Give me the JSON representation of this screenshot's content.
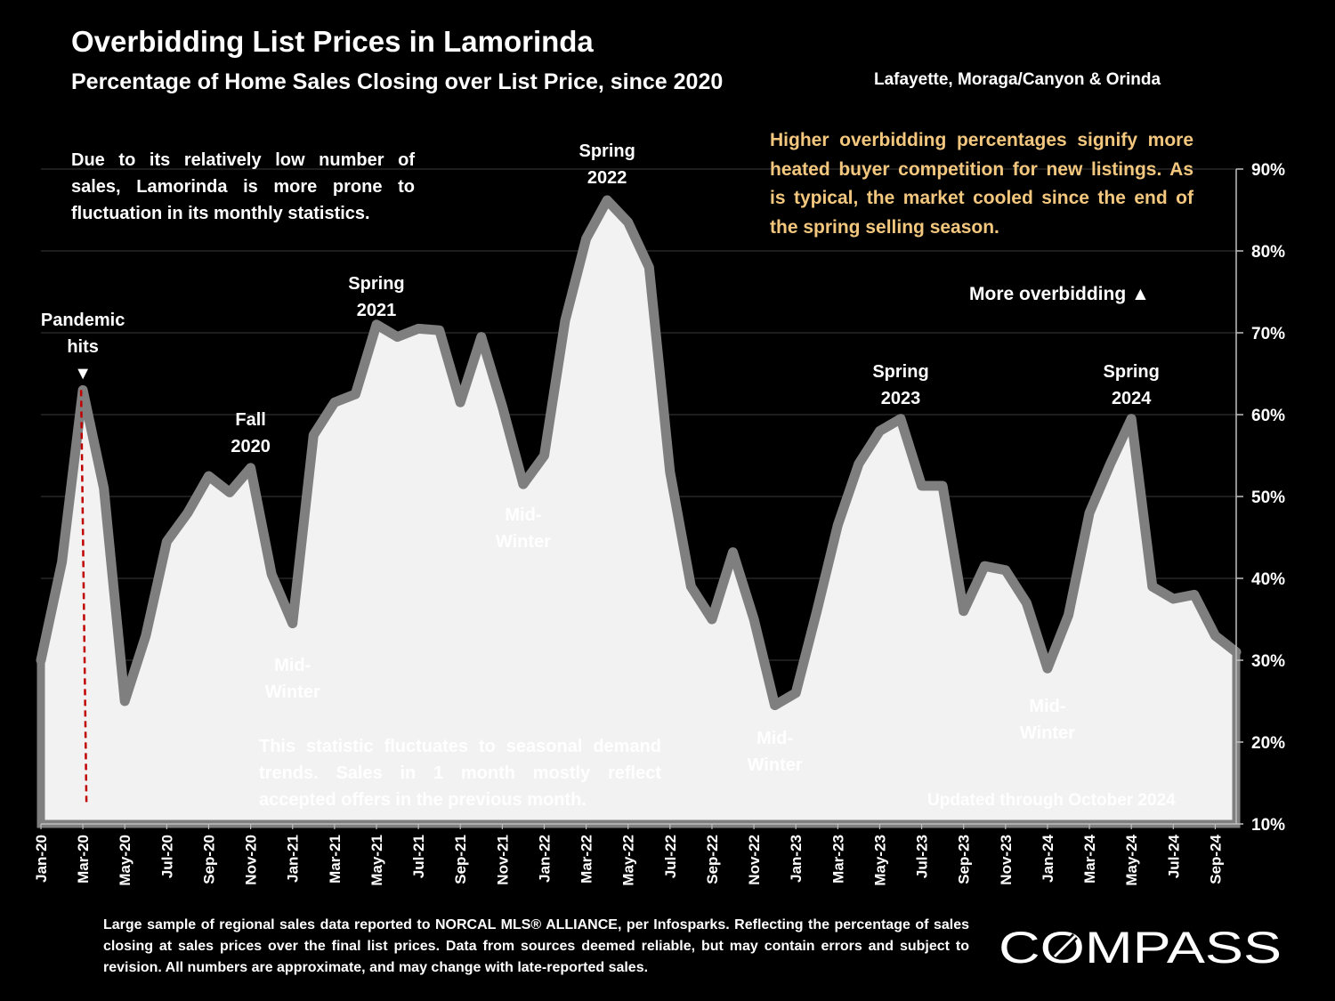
{
  "header": {
    "title": "Overbidding List Prices in Lamorinda",
    "subtitle": "Percentage of Home Sales Closing over List Price, since 2020",
    "region": "Lafayette, Moraga/Canyon & Orinda"
  },
  "notes": {
    "volatility": "Due to its relatively low number of sales, Lamorinda is more prone to fluctuation in its monthly statistics.",
    "competition": "Higher overbidding percentages signify more heated buyer competition for new listings. As is typical, the market cooled since the end of the spring selling season.",
    "seasonal": "This statistic fluctuates to seasonal demand trends. Sales in 1 month mostly reflect accepted offers in the previous month.",
    "updated": "Updated through October 2024",
    "more_overbidding": "More overbidding ▲"
  },
  "footer": {
    "disclaimer": "Large sample of regional sales data reported to NORCAL MLS® ALLIANCE, per Infosparks. Reflecting the percentage of sales closing at sales prices over the final list prices. Data from sources deemed reliable, but may contain errors and subject to revision. All numbers are approximate, and may change with late-reported sales.",
    "logo": "COMPASS"
  },
  "colors": {
    "background": "#000000",
    "line": "#7f7f7f",
    "area_fill": "#f2f2f2",
    "highlight_text": "#f3c77e",
    "pandemic_marker": "#c00000"
  },
  "chart_data": {
    "type": "area",
    "title": "Overbidding List Prices in Lamorinda",
    "y_axis_position": "right",
    "ylim": [
      10,
      90
    ],
    "y_ticks": [
      "10%",
      "20%",
      "30%",
      "40%",
      "50%",
      "60%",
      "70%",
      "80%",
      "90%"
    ],
    "grid": true,
    "x_tick_labels": [
      "Jan-20",
      "Mar-20",
      "May-20",
      "Jul-20",
      "Sep-20",
      "Nov-20",
      "Jan-21",
      "Mar-21",
      "May-21",
      "Jul-21",
      "Sep-21",
      "Nov-21",
      "Jan-22",
      "Mar-22",
      "May-22",
      "Jul-22",
      "Sep-22",
      "Nov-22",
      "Jan-23",
      "Mar-23",
      "May-23",
      "Jul-23",
      "Sep-23",
      "Nov-23",
      "Jan-24",
      "Mar-24",
      "May-24",
      "Jul-24",
      "Sep-24"
    ],
    "series": [
      {
        "unit": "%",
        "x": [
          "Jan-20",
          "Feb-20",
          "Mar-20",
          "Apr-20",
          "May-20",
          "Jun-20",
          "Jul-20",
          "Aug-20",
          "Sep-20",
          "Oct-20",
          "Nov-20",
          "Dec-20",
          "Jan-21",
          "Feb-21",
          "Mar-21",
          "Apr-21",
          "May-21",
          "Jun-21",
          "Jul-21",
          "Aug-21",
          "Sep-21",
          "Oct-21",
          "Nov-21",
          "Dec-21",
          "Jan-22",
          "Feb-22",
          "Mar-22",
          "Apr-22",
          "May-22",
          "Jun-22",
          "Jul-22",
          "Aug-22",
          "Sep-22",
          "Oct-22",
          "Nov-22",
          "Dec-22",
          "Jan-23",
          "Feb-23",
          "Mar-23",
          "Apr-23",
          "May-23",
          "Jun-23",
          "Jul-23",
          "Aug-23",
          "Sep-23",
          "Oct-23",
          "Nov-23",
          "Dec-23",
          "Jan-24",
          "Feb-24",
          "Mar-24",
          "Apr-24",
          "May-24",
          "Jun-24",
          "Jul-24",
          "Aug-24",
          "Sep-24",
          "Oct-24"
        ],
        "values": [
          30.0,
          42.0,
          63.0,
          51.0,
          25.0,
          33.0,
          44.5,
          48.0,
          52.5,
          50.5,
          53.5,
          40.5,
          34.5,
          57.5,
          61.5,
          62.5,
          71.0,
          69.5,
          70.5,
          70.3,
          61.5,
          69.5,
          61.0,
          51.5,
          55.0,
          71.5,
          81.5,
          86.2,
          83.5,
          78.0,
          53.0,
          39.0,
          35.0,
          43.2,
          35.0,
          24.5,
          26.0,
          36.0,
          46.5,
          54.0,
          58.0,
          59.5,
          51.3,
          51.3,
          36.0,
          41.5,
          41.0,
          37.0,
          29.0,
          35.5,
          48.0,
          54.0,
          59.5,
          39.0,
          37.5,
          38.0,
          33.0,
          31.0
        ]
      }
    ],
    "annotations": [
      {
        "x": "Mar-20",
        "lines": [
          "Pandemic",
          "hits",
          "▼"
        ]
      },
      {
        "x": "Nov-20",
        "lines": [
          "Fall",
          "2020"
        ]
      },
      {
        "x": "Jan-21",
        "lines": [
          "Mid-",
          "Winter"
        ]
      },
      {
        "x": "May-21",
        "lines": [
          "Spring",
          "2021"
        ]
      },
      {
        "x": "Dec-21",
        "lines": [
          "Mid-",
          "Winter"
        ]
      },
      {
        "x": "Apr-22",
        "lines": [
          "Spring",
          "2022"
        ]
      },
      {
        "x": "Dec-22",
        "lines": [
          "Mid-",
          "Winter"
        ]
      },
      {
        "x": "Jun-23",
        "lines": [
          "Spring",
          "2023"
        ]
      },
      {
        "x": "Jan-24",
        "lines": [
          "Mid-",
          "Winter"
        ]
      },
      {
        "x": "May-24",
        "lines": [
          "Spring",
          "2024"
        ]
      }
    ]
  }
}
